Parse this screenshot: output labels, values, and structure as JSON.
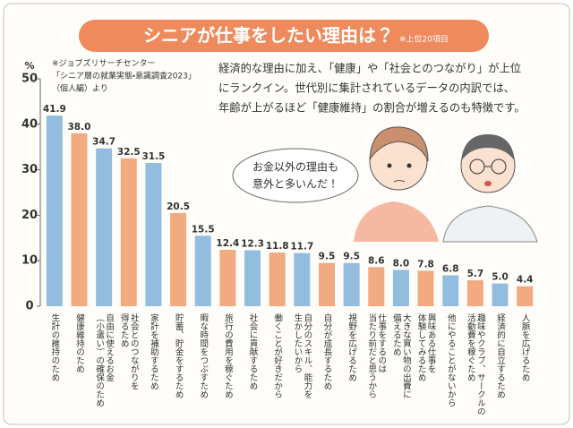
{
  "chart_data": {
    "type": "bar",
    "title": "シニアが仕事をしたい理由は？",
    "title_note": "※上位20項目",
    "source": [
      "※ジョブズリサーチセンター",
      "「シニア層の就業実態・意識調査2023」",
      "（個人編）より"
    ],
    "description": [
      "経済的な理由に加え、「健康」や「社会とのつながり」が上位",
      "にランクイン。世代別に集計されているデータの内訳では、",
      "年齢が上がるほど「健康維持」の割合が増えるのも特徴です。"
    ],
    "speech_bubble": [
      "お金以外の理由も",
      "意外と多いんだ！"
    ],
    "y_unit": "%",
    "categories": [
      [
        "生計の維持のため"
      ],
      [
        "健康維持のため"
      ],
      [
        "自由に使えるお金",
        "（小遣い）の確保のため"
      ],
      [
        "社会とのつながりを",
        "得るため"
      ],
      [
        "家計を補助するため"
      ],
      [
        "貯蓄、貯金をするため"
      ],
      [
        "暇な時間をつぶすため"
      ],
      [
        "旅行の費用を稼ぐため"
      ],
      [
        "社会に貢献するため"
      ],
      [
        "働くことが好きだから"
      ],
      [
        "自分のスキル、能力を",
        "生かしたいから"
      ],
      [
        "自分が成長するため"
      ],
      [
        "視野を広げるため"
      ],
      [
        "仕事をするのは",
        "当たり前だと思うから"
      ],
      [
        "大きな買い物の出費に",
        "備えるため"
      ],
      [
        "興味ある仕事を",
        "体験してみるため"
      ],
      [
        "他にやることがないから"
      ],
      [
        "趣味やクラブ、サークルの",
        "活動費を稼ぐため"
      ],
      [
        "経済的に自立するため"
      ],
      [
        "人脈を広げるため"
      ]
    ],
    "values": [
      41.9,
      38.0,
      34.7,
      32.5,
      31.5,
      20.5,
      15.5,
      12.4,
      12.3,
      11.8,
      11.7,
      9.5,
      9.5,
      8.6,
      8.0,
      7.8,
      6.8,
      5.7,
      5.0,
      4.4
    ],
    "value_labels": [
      "41.9",
      "38.0",
      "34.7",
      "32.5",
      "31.5",
      "20.5",
      "15.5",
      "12.4",
      "12.3",
      "11.8",
      "11.7",
      "9.5",
      "9.5",
      "8.6",
      "8.0",
      "7.8",
      "6.8",
      "5.7",
      "5.0",
      "4.4"
    ],
    "colors": [
      "#93bddf",
      "#f2aa80"
    ],
    "ylim": [
      0,
      50
    ],
    "yticks": [
      0,
      10,
      20,
      30,
      40,
      50
    ]
  }
}
